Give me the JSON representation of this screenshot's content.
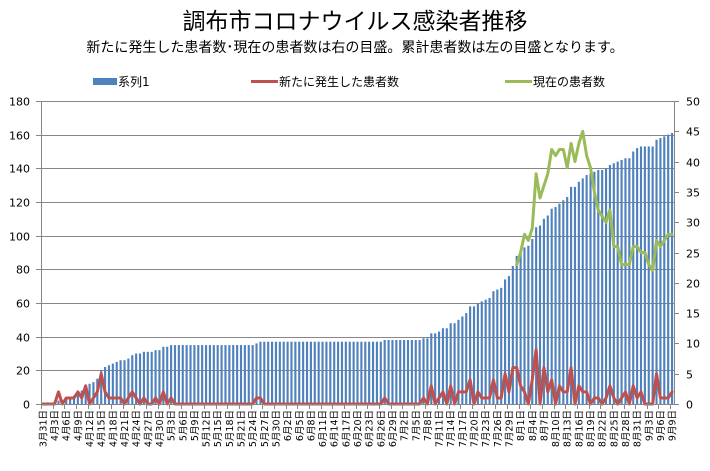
{
  "title": "調布市コロナウイルス感染者推移",
  "subtitle": "新たに発生した患者数･現在の患者数は右の目盛。累計患者数は左の目盛となります。",
  "legend": [
    {
      "label": "系列1",
      "color": "#4F81BD",
      "kind": "bar"
    },
    {
      "label": "新たに発生した患者数",
      "color": "#C0504D",
      "kind": "line"
    },
    {
      "label": "現在の患者数",
      "color": "#9BBB59",
      "kind": "line"
    }
  ],
  "chart_data": {
    "type": "bar",
    "title": "調布市コロナウイルス感染者推移",
    "subtitle": "新たに発生した患者数･現在の患者数は右の目盛。累計患者数は左の目盛となります。",
    "xlabel": "",
    "ylabel": "",
    "grid": true,
    "legend_position": "top",
    "label_interval": 3,
    "y_left": {
      "min": 0,
      "max": 180,
      "step": 20,
      "tick_labels": [
        "0",
        "20",
        "40",
        "60",
        "80",
        "100",
        "120",
        "140",
        "160",
        "180"
      ]
    },
    "y_right": {
      "min": 0,
      "max": 50,
      "step": 5,
      "tick_labels": [
        "0",
        "5",
        "10",
        "15",
        "20",
        "25",
        "30",
        "35",
        "40",
        "45",
        "50"
      ]
    },
    "categories": [
      "3月31日",
      "4月1日",
      "4月2日",
      "4月3日",
      "4月4日",
      "4月5日",
      "4月6日",
      "4月7日",
      "4月8日",
      "4月9日",
      "4月10日",
      "4月11日",
      "4月12日",
      "4月13日",
      "4月14日",
      "4月15日",
      "4月16日",
      "4月17日",
      "4月18日",
      "4月19日",
      "4月20日",
      "4月21日",
      "4月22日",
      "4月23日",
      "4月24日",
      "4月25日",
      "4月26日",
      "4月27日",
      "4月28日",
      "4月29日",
      "4月30日",
      "5月1日",
      "5月2日",
      "5月3日",
      "5月4日",
      "5月5日",
      "5月6日",
      "5月7日",
      "5月8日",
      "5月9日",
      "5月10日",
      "5月11日",
      "5月12日",
      "5月13日",
      "5月14日",
      "5月15日",
      "5月16日",
      "5月17日",
      "5月18日",
      "5月19日",
      "5月20日",
      "5月21日",
      "5月22日",
      "5月23日",
      "5月24日",
      "5月25日",
      "5月26日",
      "5月27日",
      "5月28日",
      "5月29日",
      "5月30日",
      "5月31日",
      "6月1日",
      "6月2日",
      "6月3日",
      "6月4日",
      "6月5日",
      "6月6日",
      "6月7日",
      "6月8日",
      "6月9日",
      "6月10日",
      "6月11日",
      "6月12日",
      "6月13日",
      "6月14日",
      "6月15日",
      "6月16日",
      "6月17日",
      "6月18日",
      "6月19日",
      "6月20日",
      "6月21日",
      "6月22日",
      "6月23日",
      "6月24日",
      "6月25日",
      "6月26日",
      "6月27日",
      "6月28日",
      "6月29日",
      "6月30日",
      "7月1日",
      "7月2日",
      "7月3日",
      "7月4日",
      "7月5日",
      "7月6日",
      "7月7日",
      "7月8日",
      "7月9日",
      "7月10日",
      "7月11日",
      "7月12日",
      "7月13日",
      "7月14日",
      "7月15日",
      "7月16日",
      "7月17日",
      "7月18日",
      "7月19日",
      "7月20日",
      "7月21日",
      "7月22日",
      "7月23日",
      "7月24日",
      "7月25日",
      "7月26日",
      "7月27日",
      "7月28日",
      "7月29日",
      "7月30日",
      "7月31日",
      "8月1日",
      "8月2日",
      "8月3日",
      "8月4日",
      "8月5日",
      "8月6日",
      "8月7日",
      "8月8日",
      "8月9日",
      "8月10日",
      "8月11日",
      "8月12日",
      "8月13日",
      "8月14日",
      "8月15日",
      "8月16日",
      "8月17日",
      "8月18日",
      "8月19日",
      "8月20日",
      "8月21日",
      "8月22日",
      "8月23日",
      "8月24日",
      "8月25日",
      "8月26日",
      "8月27日",
      "8月28日",
      "8月29日",
      "8月30日",
      "8月31日",
      "9月1日",
      "9月2日",
      "9月3日",
      "9月4日",
      "9月5日",
      "9月6日",
      "9月7日",
      "9月8日",
      "9月9日"
    ],
    "series": [
      {
        "name": "系列1",
        "type": "bar",
        "axis": "left",
        "color": "#4F81BD",
        "values": [
          0,
          0,
          0,
          0,
          2,
          2,
          3,
          4,
          5,
          7,
          8,
          11,
          12,
          13,
          15,
          20,
          22,
          23,
          24,
          25,
          26,
          26,
          27,
          29,
          30,
          30,
          31,
          31,
          31,
          32,
          32,
          34,
          34,
          35,
          35,
          35,
          35,
          35,
          35,
          35,
          35,
          35,
          35,
          35,
          35,
          35,
          35,
          35,
          35,
          35,
          35,
          35,
          35,
          35,
          35,
          36,
          37,
          37,
          37,
          37,
          37,
          37,
          37,
          37,
          37,
          37,
          37,
          37,
          37,
          37,
          37,
          37,
          37,
          37,
          37,
          37,
          37,
          37,
          37,
          37,
          37,
          37,
          37,
          37,
          37,
          37,
          37,
          37,
          38,
          38,
          38,
          38,
          38,
          38,
          38,
          38,
          38,
          38,
          39,
          39,
          42,
          42,
          43,
          45,
          45,
          48,
          48,
          50,
          52,
          54,
          58,
          58,
          60,
          61,
          62,
          63,
          67,
          68,
          69,
          74,
          76,
          82,
          88,
          91,
          93,
          94,
          98,
          105,
          106,
          110,
          112,
          116,
          117,
          119,
          121,
          123,
          129,
          129,
          132,
          134,
          136,
          137,
          138,
          139,
          139,
          140,
          142,
          143,
          144,
          145,
          146,
          146,
          150,
          152,
          153,
          153,
          153,
          153,
          157,
          158,
          159,
          160,
          161
        ]
      },
      {
        "name": "新たに発生した患者数",
        "type": "line",
        "axis": "right",
        "color": "#C0504D",
        "values": [
          0,
          0,
          0,
          0,
          2,
          0,
          1,
          1,
          1,
          2,
          1,
          3,
          0,
          1,
          2,
          5,
          2,
          1,
          1,
          1,
          1,
          0,
          1,
          2,
          1,
          0,
          1,
          0,
          0,
          1,
          0,
          2,
          0,
          1,
          0,
          0,
          0,
          0,
          0,
          0,
          0,
          0,
          0,
          0,
          0,
          0,
          0,
          0,
          0,
          0,
          0,
          0,
          0,
          0,
          0,
          1,
          1,
          0,
          0,
          0,
          0,
          0,
          0,
          0,
          0,
          0,
          0,
          0,
          0,
          0,
          0,
          0,
          0,
          0,
          0,
          0,
          0,
          0,
          0,
          0,
          0,
          0,
          0,
          0,
          0,
          0,
          0,
          0,
          1,
          0,
          0,
          0,
          0,
          0,
          0,
          0,
          0,
          0,
          1,
          0,
          3,
          0,
          1,
          2,
          0,
          3,
          0,
          2,
          2,
          2,
          4,
          0,
          2,
          1,
          1,
          1,
          4,
          1,
          1,
          5,
          2,
          6,
          6,
          3,
          2,
          0,
          4,
          9,
          0,
          6,
          2,
          4,
          0,
          3,
          2,
          2,
          6,
          0,
          3,
          2,
          2,
          0,
          1,
          1,
          0,
          1,
          3,
          1,
          0,
          1,
          2,
          0,
          3,
          1,
          2,
          0,
          0,
          0,
          5,
          1,
          1,
          1,
          2
        ]
      },
      {
        "name": "現在の患者数",
        "type": "line",
        "axis": "right",
        "color": "#9BBB59",
        "values": [
          null,
          null,
          null,
          null,
          null,
          null,
          null,
          null,
          null,
          null,
          null,
          null,
          null,
          null,
          null,
          null,
          null,
          null,
          null,
          null,
          null,
          null,
          null,
          null,
          null,
          null,
          null,
          null,
          null,
          null,
          null,
          null,
          null,
          null,
          null,
          null,
          null,
          null,
          null,
          null,
          null,
          null,
          null,
          null,
          null,
          null,
          null,
          null,
          null,
          null,
          null,
          null,
          null,
          null,
          null,
          null,
          null,
          null,
          null,
          null,
          null,
          null,
          null,
          null,
          null,
          null,
          null,
          null,
          null,
          null,
          null,
          null,
          null,
          null,
          null,
          null,
          null,
          null,
          null,
          null,
          null,
          null,
          null,
          null,
          null,
          null,
          null,
          null,
          null,
          null,
          null,
          null,
          null,
          null,
          null,
          null,
          null,
          null,
          null,
          null,
          null,
          null,
          null,
          null,
          null,
          null,
          null,
          null,
          null,
          null,
          null,
          null,
          null,
          null,
          null,
          null,
          null,
          null,
          null,
          null,
          null,
          null,
          23,
          25,
          28,
          27,
          29,
          38,
          34,
          36,
          38,
          42,
          41,
          42,
          42,
          39,
          43,
          40,
          43,
          45,
          41,
          39,
          35,
          32,
          31,
          30,
          32,
          26,
          26,
          23,
          23,
          23,
          26,
          26,
          25,
          25,
          23,
          22,
          27,
          26,
          27,
          28,
          28
        ]
      }
    ]
  }
}
